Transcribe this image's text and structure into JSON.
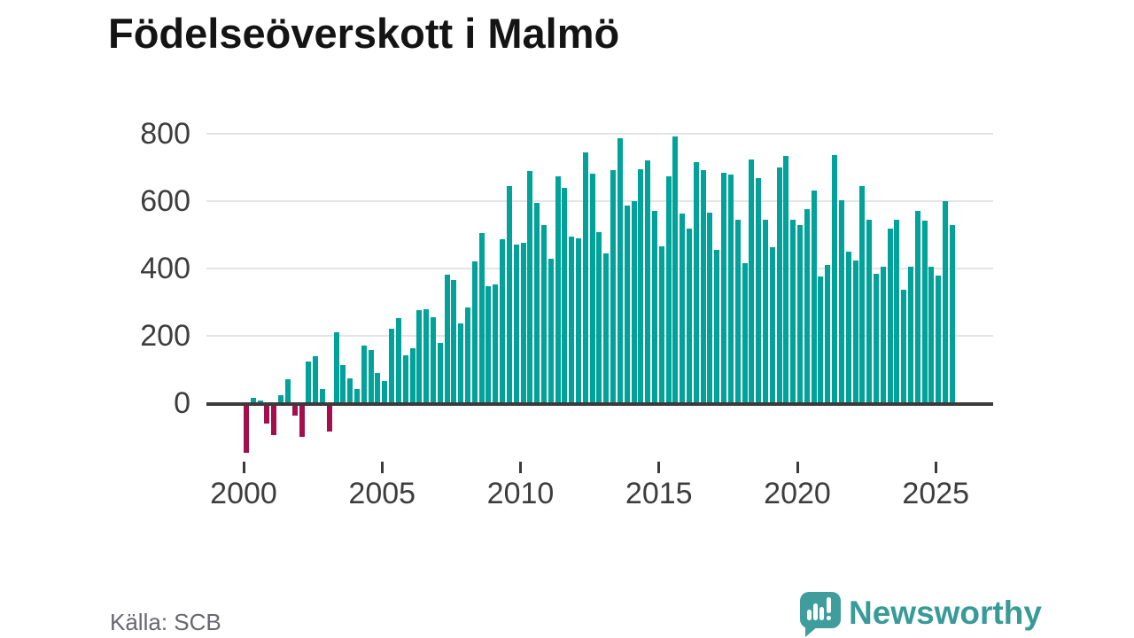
{
  "footer": {
    "source": "Källa: SCB",
    "brand": "Newsworthy"
  },
  "chart_data": {
    "type": "bar",
    "title": "Födelseöverskott i Malmö",
    "xlabel": "",
    "ylabel": "",
    "x_unit": "quarter",
    "start_quarter": "2000-Q1",
    "end_quarter": "2025-Q3",
    "x_ticks": [
      2000,
      2005,
      2010,
      2015,
      2020,
      2025
    ],
    "y_ticks": [
      0,
      200,
      400,
      600,
      800
    ],
    "ylim": [
      -160,
      800
    ],
    "grid": "horizontal",
    "legend": "none",
    "positive_color": "#00a29a",
    "negative_color": "#a40e4c",
    "values": [
      -148,
      16,
      8,
      -60,
      -95,
      24,
      72,
      -38,
      -100,
      125,
      140,
      42,
      -84,
      211,
      112,
      75,
      43,
      170,
      158,
      90,
      65,
      221,
      252,
      143,
      162,
      276,
      278,
      254,
      180,
      381,
      366,
      237,
      283,
      420,
      506,
      348,
      352,
      487,
      645,
      470,
      476,
      690,
      595,
      528,
      430,
      675,
      640,
      494,
      489,
      745,
      682,
      509,
      445,
      692,
      788,
      588,
      600,
      695,
      722,
      570,
      465,
      674,
      792,
      562,
      519,
      716,
      692,
      565,
      455,
      685,
      680,
      546,
      417,
      725,
      668,
      546,
      464,
      700,
      733,
      546,
      530,
      576,
      632,
      376,
      411,
      736,
      603,
      451,
      423,
      644,
      545,
      384,
      405,
      518,
      546,
      338,
      404,
      570,
      542,
      405,
      380,
      601,
      528
    ]
  }
}
